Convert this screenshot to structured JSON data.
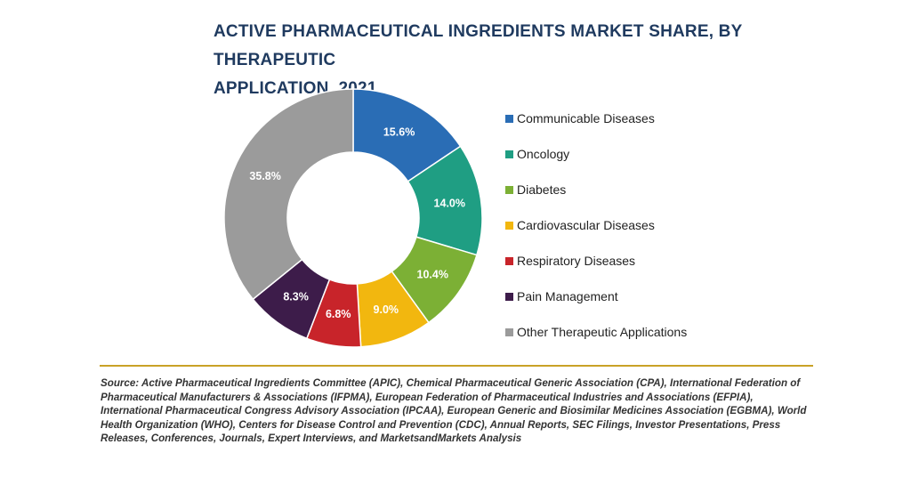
{
  "title_line1": "ACTIVE PHARMACEUTICAL INGREDIENTS MARKET SHARE, BY THERAPEUTIC",
  "title_line2": "APPLICATION, 2021",
  "chart_data": {
    "type": "pie",
    "subtype": "donut",
    "title": "ACTIVE PHARMACEUTICAL INGREDIENTS MARKET SHARE, BY THERAPEUTIC APPLICATION, 2021",
    "legend_position": "right",
    "slices": [
      {
        "label": "Communicable Diseases",
        "value": 15.6,
        "display": "15.6%",
        "color": "#2a6db5"
      },
      {
        "label": "Oncology",
        "value": 14.0,
        "display": "14.0%",
        "color": "#1f9e83"
      },
      {
        "label": "Diabetes",
        "value": 10.4,
        "display": "10.4%",
        "color": "#7cb035"
      },
      {
        "label": "Cardiovascular Diseases",
        "value": 9.0,
        "display": "9.0%",
        "color": "#f2b70f"
      },
      {
        "label": "Respiratory Diseases",
        "value": 6.8,
        "display": "6.8%",
        "color": "#c8242a"
      },
      {
        "label": "Pain Management",
        "value": 8.3,
        "display": "8.3%",
        "color": "#3d1c4a"
      },
      {
        "label": "Other Therapeutic Applications",
        "value": 35.8,
        "display": "35.8%",
        "color": "#9b9b9b"
      }
    ]
  },
  "source": "Source: Active Pharmaceutical Ingredients Committee (APIC), Chemical Pharmaceutical Generic Association (CPA), International Federation of Pharmaceutical Manufacturers & Associations (IFPMA), European Federation of Pharmaceutical Industries and Associations (EFPIA), International Pharmaceutical Congress Advisory Association (IPCAA), European Generic and Biosimilar Medicines Association (EGBMA), World Health Organization (WHO), Centers for Disease Control and Prevention (CDC), Annual Reports, SEC Filings, Investor Presentations, Press Releases, Conferences, Journals, Expert Interviews, and MarketsandMarkets Analysis",
  "divider_color": "#c9a227"
}
